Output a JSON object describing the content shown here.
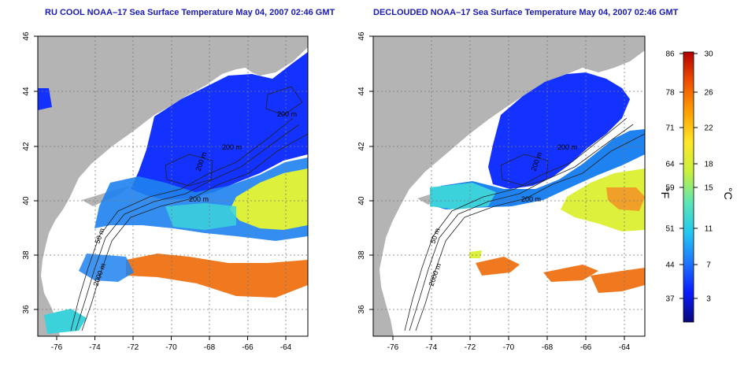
{
  "panels": [
    {
      "id": "left",
      "title": "RU COOL NOAA–17 Sea Surface Temperature May 04, 2007 02:46 GMT",
      "contour_labels": [
        "200 m",
        "200 m",
        "200 m",
        "50 m",
        "2000 m",
        "200 m"
      ]
    },
    {
      "id": "right",
      "title": "DECLOUDED NOAA–17 Sea Surface Temperature May 04, 2007 02:46 GMT",
      "contour_labels": [
        "200 m",
        "200 m",
        "200 m",
        "50 m",
        "2000 m"
      ]
    }
  ],
  "axes": {
    "x_ticks": [
      "-76",
      "-74",
      "-72",
      "-70",
      "-68",
      "-66",
      "-64"
    ],
    "y_ticks": [
      "36",
      "38",
      "40",
      "42",
      "44",
      "46"
    ]
  },
  "colorbar": {
    "fahrenheit_ticks": [
      "86",
      "78",
      "71",
      "64",
      "59",
      "51",
      "44",
      "37"
    ],
    "celsius_ticks": [
      "30",
      "26",
      "22",
      "18",
      "15",
      "11",
      "7",
      "3"
    ],
    "fahrenheit_unit": "°F",
    "celsius_unit": "°C",
    "colors": [
      "#08087a",
      "#0a1cff",
      "#1e78ff",
      "#22c8f0",
      "#5ee6b4",
      "#c8f03c",
      "#ffe628",
      "#ffa000",
      "#f05000",
      "#b40000"
    ]
  },
  "colors": {
    "land": "#b4b4b4",
    "cold_water": "#1432ff",
    "mid_water": "#1e82f0",
    "cool_water": "#3cd2dc",
    "warm_water": "#dcf03c",
    "hot_water": "#f0781e",
    "title": "#1a1ab4"
  }
}
